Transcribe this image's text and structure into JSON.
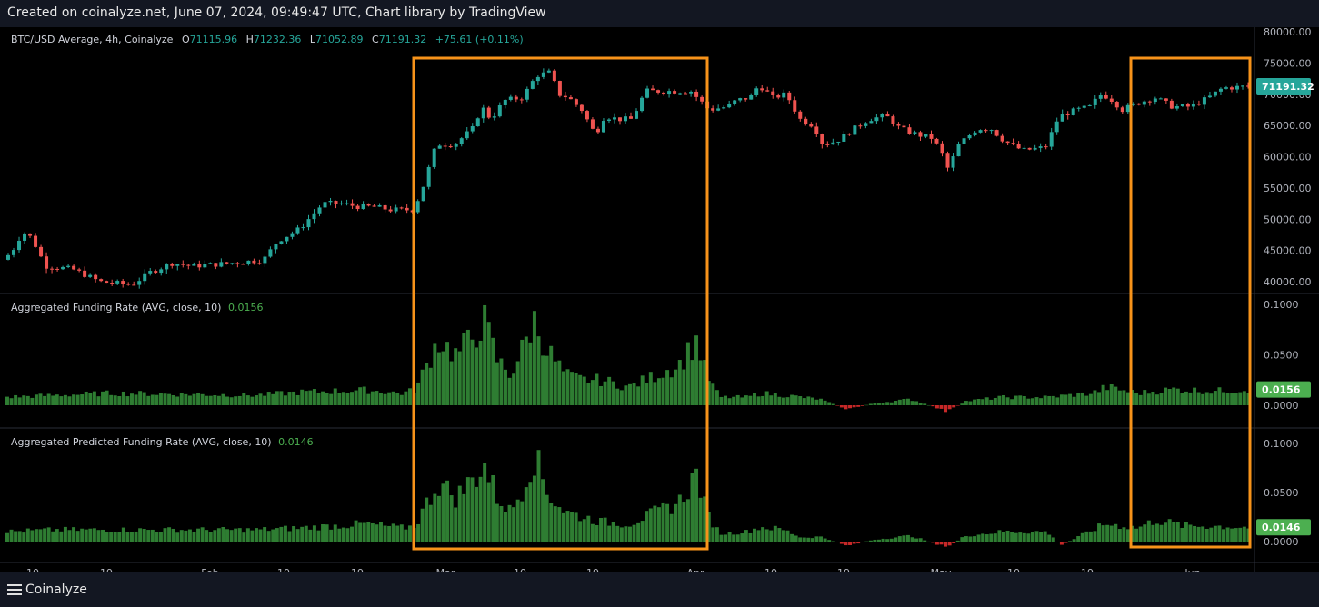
{
  "caption": "Created on coinalyze.net, June 07, 2024, 09:49:47 UTC, Chart library by TradingView",
  "brand": "Coinalyze",
  "colors": {
    "up": "#26a69a",
    "down": "#ef5350",
    "bar_up": "#2e7d32",
    "bar_down": "#c62828",
    "highlight": "#f7931a",
    "bg": "#000000",
    "grid": "#2a2e39",
    "label_price": "#26a69a",
    "label_funding": "#4caf50"
  },
  "price_pane": {
    "symbol": "BTC/USD Average, 4h, Coinalyze",
    "open_label": "O",
    "open": "71115.96",
    "high_label": "H",
    "high": "71232.36",
    "low_label": "L",
    "low": "71052.89",
    "close_label": "C",
    "close": "71191.32",
    "change": "+75.61 (+0.11%)",
    "last_price": "71191.32",
    "ticks": [
      "80000.00",
      "75000.00",
      "70000.00",
      "65000.00",
      "60000.00",
      "55000.00",
      "50000.00",
      "45000.00",
      "40000.00"
    ]
  },
  "funding_pane": {
    "label": "Aggregated Funding Rate (AVG, close, 10)",
    "value": "0.0156",
    "ticks": [
      "0.1000",
      "0.0500",
      "0.0000"
    ]
  },
  "predicted_pane": {
    "label": "Aggregated Predicted Funding Rate (AVG, close, 10)",
    "value": "0.0146",
    "ticks": [
      "0.1000",
      "0.0500",
      "0.0000"
    ]
  },
  "time_axis": [
    "10",
    "19",
    "Feb",
    "10",
    "19",
    "Mar",
    "10",
    "19",
    "Apr",
    "10",
    "19",
    "May",
    "10",
    "19",
    "Jun"
  ],
  "chart_data": {
    "type": "candlestick",
    "timeframe": "4h",
    "price_ylim": [
      38000,
      80000
    ],
    "funding_ylim": [
      -0.02,
      0.1
    ],
    "price_keypoints": [
      [
        0,
        43500
      ],
      [
        12,
        44500
      ],
      [
        25,
        48000
      ],
      [
        35,
        47000
      ],
      [
        50,
        42500
      ],
      [
        80,
        42000
      ],
      [
        110,
        40000
      ],
      [
        145,
        39500
      ],
      [
        165,
        41500
      ],
      [
        190,
        43000
      ],
      [
        210,
        42500
      ],
      [
        240,
        42800
      ],
      [
        270,
        43200
      ],
      [
        290,
        43500
      ],
      [
        305,
        46500
      ],
      [
        330,
        48500
      ],
      [
        355,
        52500
      ],
      [
        375,
        52500
      ],
      [
        395,
        52000
      ],
      [
        410,
        52000
      ],
      [
        430,
        51500
      ],
      [
        455,
        51500
      ],
      [
        465,
        55000
      ],
      [
        480,
        62000
      ],
      [
        500,
        62000
      ],
      [
        520,
        64500
      ],
      [
        530,
        68000
      ],
      [
        540,
        66000
      ],
      [
        555,
        69000
      ],
      [
        575,
        69500
      ],
      [
        590,
        73000
      ],
      [
        605,
        73500
      ],
      [
        615,
        70000
      ],
      [
        625,
        69500
      ],
      [
        640,
        67500
      ],
      [
        655,
        63500
      ],
      [
        665,
        66500
      ],
      [
        680,
        66000
      ],
      [
        695,
        66000
      ],
      [
        710,
        70500
      ],
      [
        740,
        70500
      ],
      [
        760,
        70500
      ],
      [
        780,
        67500
      ],
      [
        800,
        68000
      ],
      [
        810,
        69000
      ],
      [
        825,
        69500
      ],
      [
        835,
        71500
      ],
      [
        850,
        69500
      ],
      [
        865,
        70000
      ],
      [
        880,
        66000
      ],
      [
        895,
        65000
      ],
      [
        905,
        62000
      ],
      [
        920,
        62500
      ],
      [
        935,
        64000
      ],
      [
        955,
        66000
      ],
      [
        975,
        66500
      ],
      [
        990,
        64500
      ],
      [
        1010,
        63500
      ],
      [
        1025,
        63000
      ],
      [
        1035,
        61000
      ],
      [
        1043,
        58000
      ],
      [
        1055,
        62000
      ],
      [
        1075,
        64500
      ],
      [
        1090,
        64500
      ],
      [
        1105,
        62500
      ],
      [
        1125,
        61000
      ],
      [
        1150,
        61500
      ],
      [
        1165,
        66500
      ],
      [
        1185,
        67500
      ],
      [
        1200,
        68000
      ],
      [
        1210,
        70000
      ],
      [
        1220,
        69500
      ],
      [
        1235,
        67500
      ],
      [
        1250,
        68500
      ],
      [
        1270,
        69500
      ],
      [
        1290,
        68000
      ],
      [
        1310,
        68000
      ],
      [
        1330,
        69500
      ],
      [
        1345,
        71000
      ],
      [
        1368,
        71191
      ]
    ],
    "funding_keypoints": [
      [
        0,
        0.008
      ],
      [
        60,
        0.01
      ],
      [
        120,
        0.012
      ],
      [
        200,
        0.011
      ],
      [
        280,
        0.01
      ],
      [
        330,
        0.013
      ],
      [
        400,
        0.015
      ],
      [
        440,
        0.012
      ],
      [
        455,
        0.015
      ],
      [
        465,
        0.035
      ],
      [
        480,
        0.065
      ],
      [
        500,
        0.05
      ],
      [
        520,
        0.07
      ],
      [
        530,
        0.085
      ],
      [
        545,
        0.045
      ],
      [
        560,
        0.03
      ],
      [
        575,
        0.06
      ],
      [
        585,
        0.085
      ],
      [
        600,
        0.055
      ],
      [
        620,
        0.03
      ],
      [
        640,
        0.025
      ],
      [
        660,
        0.025
      ],
      [
        690,
        0.018
      ],
      [
        720,
        0.03
      ],
      [
        745,
        0.04
      ],
      [
        765,
        0.065
      ],
      [
        775,
        0.03
      ],
      [
        790,
        0.008
      ],
      [
        820,
        0.008
      ],
      [
        835,
        0.012
      ],
      [
        860,
        0.01
      ],
      [
        900,
        0.006
      ],
      [
        930,
        -0.004
      ],
      [
        960,
        0.002
      ],
      [
        1000,
        0.006
      ],
      [
        1040,
        -0.006
      ],
      [
        1060,
        0.004
      ],
      [
        1100,
        0.008
      ],
      [
        1150,
        0.008
      ],
      [
        1200,
        0.012
      ],
      [
        1215,
        0.018
      ],
      [
        1250,
        0.012
      ],
      [
        1290,
        0.016
      ],
      [
        1330,
        0.014
      ],
      [
        1368,
        0.0156
      ]
    ],
    "predicted_keypoints": [
      [
        0,
        0.01
      ],
      [
        60,
        0.012
      ],
      [
        120,
        0.012
      ],
      [
        200,
        0.012
      ],
      [
        280,
        0.012
      ],
      [
        330,
        0.014
      ],
      [
        400,
        0.018
      ],
      [
        440,
        0.014
      ],
      [
        455,
        0.016
      ],
      [
        465,
        0.035
      ],
      [
        480,
        0.06
      ],
      [
        500,
        0.045
      ],
      [
        520,
        0.065
      ],
      [
        530,
        0.08
      ],
      [
        545,
        0.045
      ],
      [
        560,
        0.03
      ],
      [
        575,
        0.06
      ],
      [
        585,
        0.09
      ],
      [
        600,
        0.05
      ],
      [
        620,
        0.03
      ],
      [
        640,
        0.025
      ],
      [
        660,
        0.02
      ],
      [
        690,
        0.018
      ],
      [
        720,
        0.03
      ],
      [
        745,
        0.04
      ],
      [
        765,
        0.07
      ],
      [
        775,
        0.03
      ],
      [
        790,
        0.008
      ],
      [
        820,
        0.01
      ],
      [
        835,
        0.015
      ],
      [
        860,
        0.012
      ],
      [
        880,
        0.004
      ],
      [
        900,
        0.005
      ],
      [
        930,
        -0.004
      ],
      [
        960,
        0.002
      ],
      [
        1000,
        0.006
      ],
      [
        1040,
        -0.006
      ],
      [
        1060,
        0.006
      ],
      [
        1100,
        0.01
      ],
      [
        1150,
        0.01
      ],
      [
        1165,
        -0.004
      ],
      [
        1200,
        0.012
      ],
      [
        1215,
        0.018
      ],
      [
        1250,
        0.014
      ],
      [
        1270,
        0.022
      ],
      [
        1300,
        0.016
      ],
      [
        1330,
        0.016
      ],
      [
        1368,
        0.0146
      ]
    ],
    "highlight_ranges": [
      [
        "Mar",
        "Apr"
      ],
      [
        "May 24",
        "Jun 07"
      ]
    ]
  }
}
